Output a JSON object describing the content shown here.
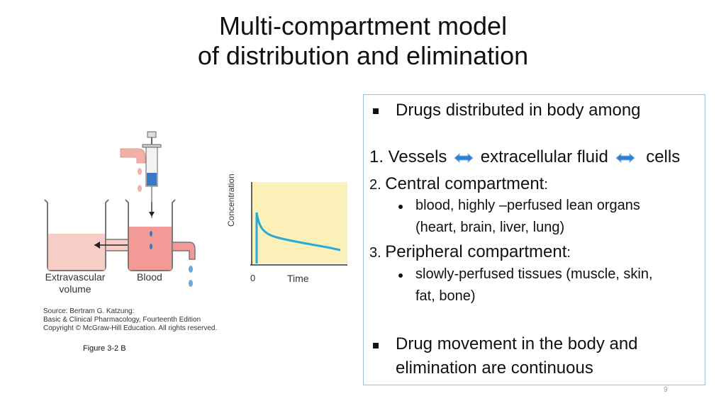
{
  "title": {
    "line1": "Multi-compartment model",
    "line2": "of distribution and elimination"
  },
  "figure": {
    "label_extravascular_1": "Extravascular",
    "label_extravascular_2": "volume",
    "label_blood": "Blood",
    "axis_y": "Concentration",
    "axis_x_zero": "0",
    "axis_x": "Time",
    "source_line1": "Source: Bertram G. Katzung:",
    "source_line2": "Basic & Clinical Pharmacology, Fourteenth Edition",
    "source_line3": "Copyright © McGraw-Hill Education. All rights reserved.",
    "caption": "Figure 3-2 B"
  },
  "box": {
    "bullet1": "Drugs distributed  in body among",
    "item1_a": "1. Vessels",
    "item1_b": "extracellular  fluid",
    "item1_c": "cells",
    "item2_num": "2. ",
    "item2_text": "Central compartment",
    "item2_colon": ":",
    "item2_sub_1": "blood, highly –perfused lean organs",
    "item2_sub_2": "(heart, brain, liver, lung)",
    "item3_num": "3. ",
    "item3_text": "Peripheral  compartment",
    "item3_colon": ":",
    "item3_sub_1": "slowly-perfused tissues (muscle, skin,",
    "item3_sub_2": "fat, bone)",
    "bullet2_1": "Drug movement in the body and",
    "bullet2_2": "elimination are continuous"
  },
  "page_number": "9",
  "colors": {
    "arrow_blue": "#2f7fd0",
    "box_border": "#9dc0dd",
    "chart_bg": "#faf0b8",
    "curve": "#29a9d8",
    "liquid": "#f4b5ad"
  }
}
